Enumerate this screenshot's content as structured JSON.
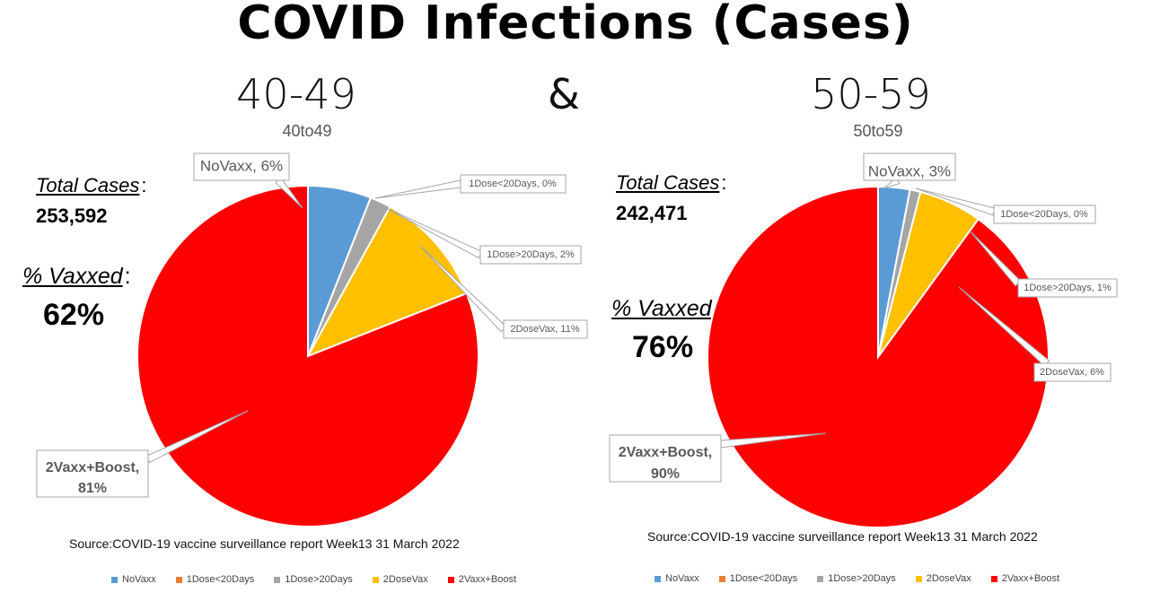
{
  "title": "COVID Infections (Cases)",
  "ampersand": "&",
  "colors": {
    "NoVaxx": "#5b9bd5",
    "1Dose<20Days": "#ed7d31",
    "1Dose>20Days": "#a5a5a5",
    "2DoseVax": "#ffc000",
    "2Vaxx+Boost": "#ff0000"
  },
  "panels": [
    {
      "age_title": "40-49",
      "chart_subtitle": "40to49",
      "total_cases_label": "Total Cases",
      "total_cases_value": "253,592",
      "vaxxed_label": "% Vaxxed",
      "vaxxed_value": "62%",
      "source": "Source:COVID-19 vaccine surveillance report Week13  31 March 2022",
      "labels": [
        "NoVaxx, 6%",
        "1Dose<20Days, 0%",
        "1Dose>20Days, 2%",
        "2DoseVax, 11%",
        "2Vaxx+Boost,",
        "81%"
      ]
    },
    {
      "age_title": "50-59",
      "chart_subtitle": "50to59",
      "total_cases_label": "Total Cases",
      "total_cases_value": "242,471",
      "vaxxed_label": "% Vaxxed",
      "vaxxed_value": "76%",
      "source": "Source:COVID-19 vaccine surveillance report Week13  31 March 2022",
      "labels": [
        "NoVaxx, 3%",
        "1Dose<20Days, 0%",
        "1Dose>20Days, 1%",
        "2DoseVax, 6%",
        "2Vaxx+Boost,",
        "90%"
      ]
    }
  ],
  "chart_data": [
    {
      "type": "pie",
      "title": "40to49",
      "categories": [
        "NoVaxx",
        "1Dose<20Days",
        "1Dose>20Days",
        "2DoseVax",
        "2Vaxx+Boost"
      ],
      "values": [
        6,
        0,
        2,
        11,
        81
      ],
      "legend": [
        "NoVaxx",
        "1Dose<20Days",
        "1Dose>20Days",
        "2DoseVax",
        "2Vaxx+Boost"
      ],
      "legend_position": "bottom"
    },
    {
      "type": "pie",
      "title": "50to59",
      "categories": [
        "NoVaxx",
        "1Dose<20Days",
        "1Dose>20Days",
        "2DoseVax",
        "2Vaxx+Boost"
      ],
      "values": [
        3,
        0,
        1,
        6,
        90
      ],
      "legend": [
        "NoVaxx",
        "1Dose<20Days",
        "1Dose>20Days",
        "2DoseVax",
        "2Vaxx+Boost"
      ],
      "legend_position": "bottom"
    }
  ]
}
